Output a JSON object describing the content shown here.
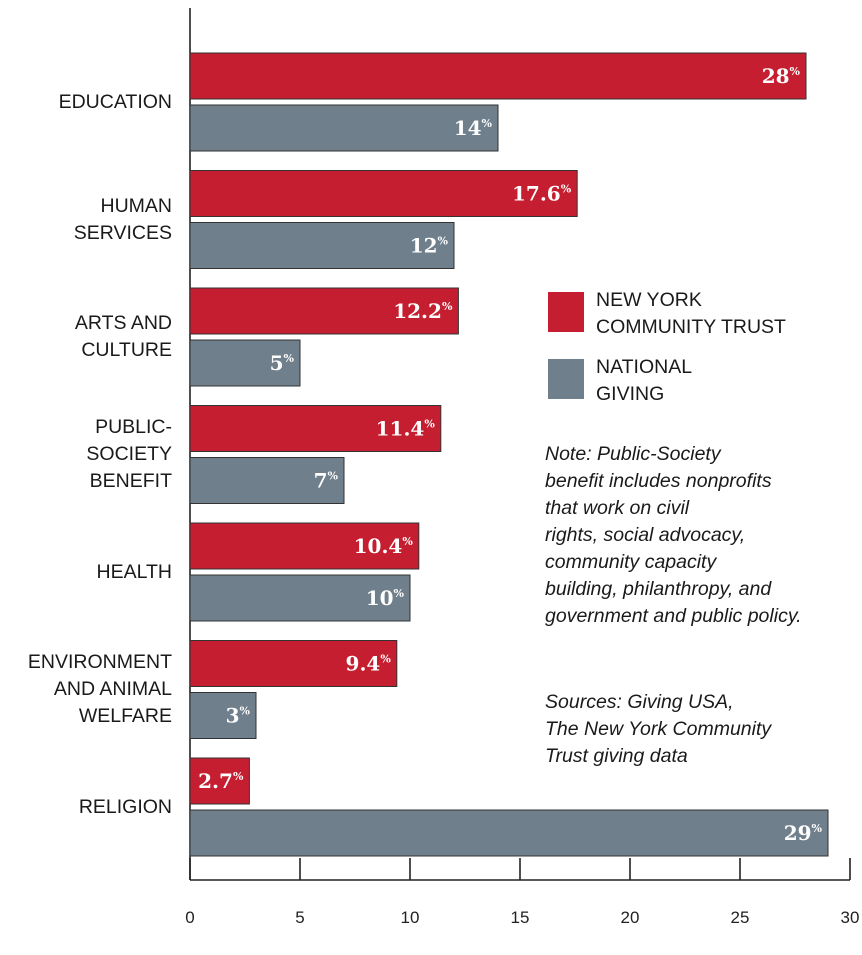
{
  "chart_data": {
    "type": "bar",
    "orientation": "horizontal",
    "categories": [
      [
        "EDUCATION"
      ],
      [
        "HUMAN",
        "SERVICES"
      ],
      [
        "ARTS AND",
        "CULTURE"
      ],
      [
        "PUBLIC-",
        "SOCIETY",
        "BENEFIT"
      ],
      [
        "HEALTH"
      ],
      [
        "ENVIRONMENT",
        "AND ANIMAL",
        "WELFARE"
      ],
      [
        "RELIGION"
      ]
    ],
    "series": [
      {
        "name": "NEW YORK COMMUNITY TRUST",
        "legend_lines": [
          "NEW YORK",
          "COMMUNITY TRUST"
        ],
        "values": [
          28,
          17.6,
          12.2,
          11.4,
          10.4,
          9.4,
          2.7
        ],
        "color": "#c41e30"
      },
      {
        "name": "NATIONAL GIVING",
        "legend_lines": [
          "NATIONAL",
          "GIVING"
        ],
        "values": [
          14,
          12,
          5,
          7,
          10,
          3,
          29
        ],
        "color": "#6f7f8c"
      }
    ],
    "value_suffix": "%",
    "xlim": [
      0,
      30
    ],
    "x_ticks": [
      0,
      5,
      10,
      15,
      20,
      25,
      30
    ],
    "legend_position": "right",
    "grid": false
  },
  "note_lines": [
    "Note: Public-Society",
    "benefit includes nonprofits",
    "that work on civil",
    "rights, social advocacy,",
    "community capacity",
    "building, philanthropy, and",
    "government and public policy."
  ],
  "source_lines": [
    "Sources: Giving USA,",
    "The New York Community",
    "Trust giving data"
  ]
}
